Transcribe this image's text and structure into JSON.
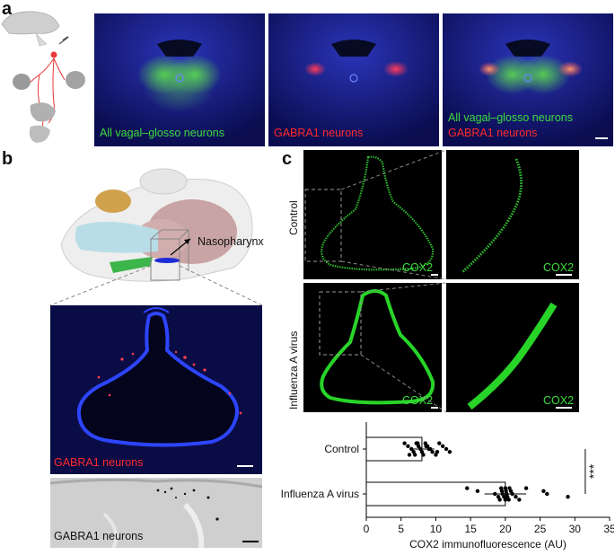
{
  "panels": {
    "a": {
      "letter": "a",
      "captions": {
        "image1": [
          "All vagal–glosso neurons"
        ],
        "image2": [
          "GABRA1 neurons"
        ],
        "image3": [
          "All vagal–glosso neurons",
          "GABRA1 neurons"
        ]
      }
    },
    "b": {
      "letter": "b",
      "schematic_label": "Nasopharynx",
      "fluor_caption": "GABRA1 neurons",
      "gray_caption": "GABRA1 neurons"
    },
    "c": {
      "letter": "c",
      "row_labels": [
        "Control",
        "Influenza A virus"
      ],
      "stain_label": "COX2"
    }
  },
  "colors": {
    "green": "#3ddc3d",
    "red": "#ff2a2a",
    "microscopy_background": "#08093a"
  },
  "chart_data": {
    "type": "bar",
    "orientation": "horizontal",
    "categories": [
      "Control",
      "Influenza A virus"
    ],
    "means": [
      8.0,
      20.0
    ],
    "points": {
      "Control": [
        5.5,
        6.0,
        6.5,
        6.8,
        7.0,
        7.2,
        7.5,
        7.8,
        8.0,
        8.2,
        8.5,
        8.8,
        9.0,
        9.5,
        10.0,
        10.5,
        11.0,
        11.5,
        12.0,
        6.2,
        7.4,
        8.6,
        9.2,
        10.2
      ],
      "Influenza A virus": [
        14.5,
        16.0,
        18.5,
        19.0,
        19.2,
        19.4,
        19.5,
        19.6,
        19.8,
        20.0,
        20.0,
        20.1,
        20.2,
        20.3,
        20.5,
        20.6,
        20.8,
        21.0,
        21.5,
        22.0,
        23.0,
        25.5,
        26.0,
        29.0
      ]
    },
    "xlabel": "COX2 immunofluorescence (AU)",
    "xlim": [
      0,
      35
    ],
    "xticks": [
      0,
      5,
      10,
      15,
      20,
      25,
      30,
      35
    ],
    "significance": "***"
  }
}
